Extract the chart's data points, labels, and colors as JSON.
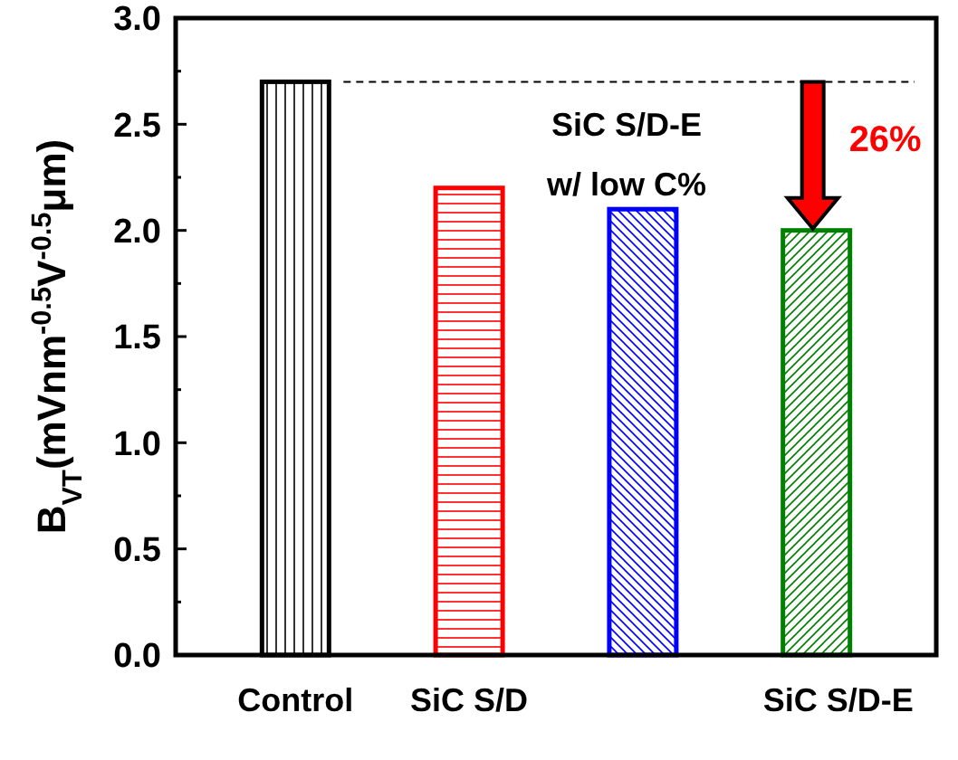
{
  "chart_data": {
    "type": "bar",
    "ylabel": "B$_{VT}$(mVnm$^{-0.5}$V$^{-0.5}$μm)",
    "categories": [
      "Control",
      "SiC S/D",
      null,
      "SiC S/D-E"
    ],
    "values": [
      2.7,
      2.2,
      2.1,
      2.0
    ],
    "colors": [
      "#000000",
      "#ff0000",
      "#0000ff",
      "#008000"
    ],
    "ylim": [
      0,
      3.0
    ],
    "yticks": [
      "0.0",
      0.5,
      "1.0",
      1.5,
      "2.0",
      2.5,
      "3.0"
    ],
    "ref_lines": [
      {
        "axis": "y",
        "value": 2.7,
        "line_style": "dashed",
        "color": "#000000"
      }
    ],
    "annotations": [
      "SiC S/D-E",
      "w/ low C%",
      "26%"
    ],
    "grid": false
  }
}
